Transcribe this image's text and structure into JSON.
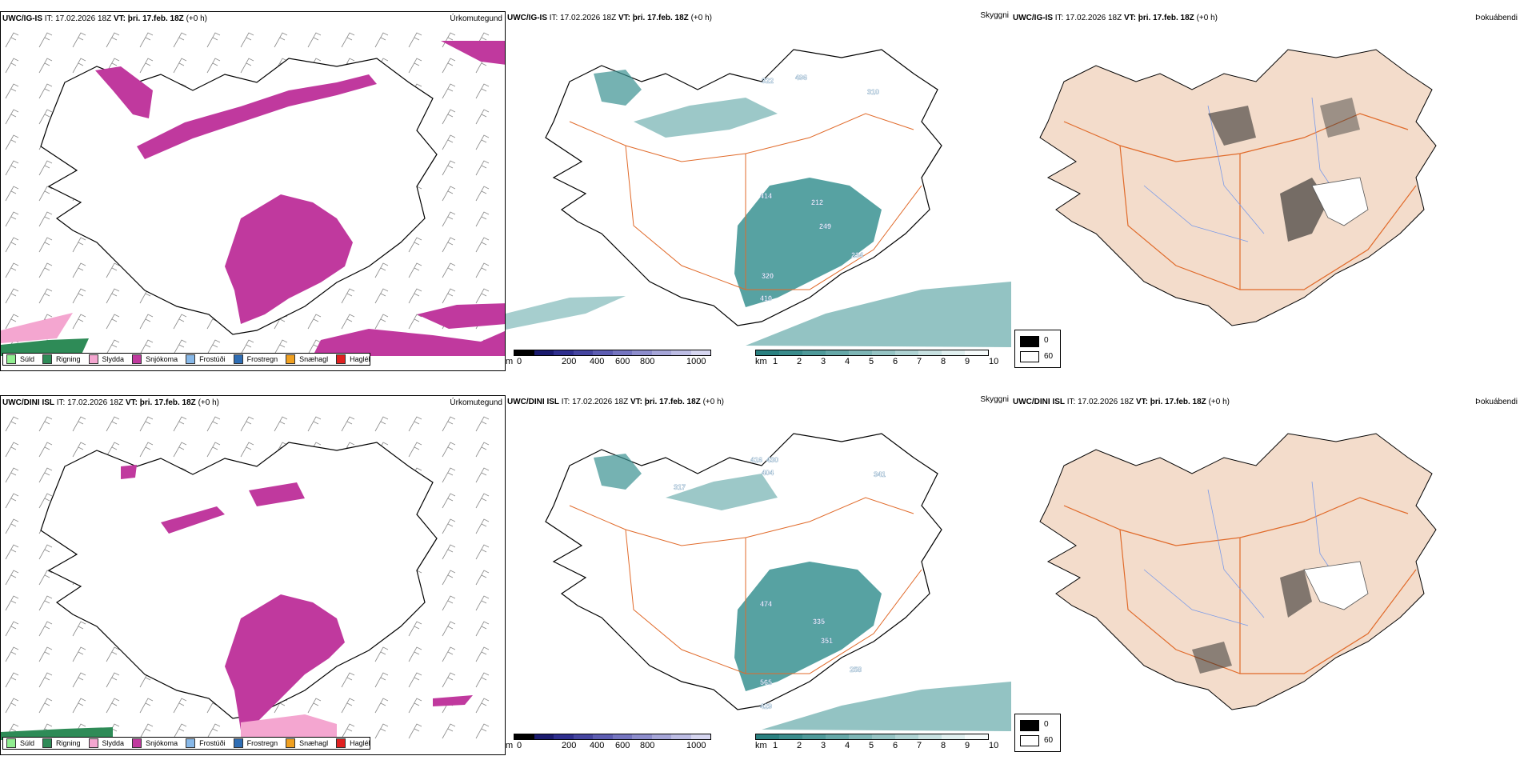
{
  "rows": [
    {
      "model": "UWC/IG-IS",
      "it_label": "IT:",
      "issue_time": "17.02.2026 18Z",
      "vt_label": "VT:",
      "valid_time": "þri. 17.feb. 18Z",
      "lead": "(+0 h)",
      "panel_titles": [
        "Úrkomutegund",
        "Skyggni",
        "Þokuábendi"
      ],
      "height_labels": [
        "322",
        "496",
        "310",
        "414",
        "212",
        "249",
        "234",
        "320",
        "410"
      ]
    },
    {
      "model": "UWC/DINI ISL",
      "it_label": "IT:",
      "issue_time": "17.02.2026 18Z",
      "vt_label": "VT:",
      "valid_time": "þri. 17.feb. 18Z",
      "lead": "(+0 h)",
      "panel_titles": [
        "Úrkomutegund",
        "Skyggni",
        "Þokuábendi"
      ],
      "height_labels": [
        "416",
        "430",
        "404",
        "317",
        "341",
        "474",
        "335",
        "351",
        "258",
        "565",
        "429"
      ]
    }
  ],
  "precip_legend": [
    {
      "label": "Súld",
      "color": "#90ee90"
    },
    {
      "label": "Rigning",
      "color": "#2e8b57"
    },
    {
      "label": "Slydda",
      "color": "#f4a6d0"
    },
    {
      "label": "Snjókoma",
      "color": "#c0399e"
    },
    {
      "label": "Frostúði",
      "color": "#87b8e8"
    },
    {
      "label": "Frostregn",
      "color": "#2e6db4"
    },
    {
      "label": "Snæhagl",
      "color": "#f0a020"
    },
    {
      "label": "Haglél",
      "color": "#e02020"
    }
  ],
  "colorbars": {
    "height_unit": "m",
    "height_ticks": [
      "0",
      "200",
      "400",
      "600",
      "800",
      "1000"
    ],
    "height_colors": [
      "#000000",
      "#1a1a6e",
      "#2e2e8e",
      "#4545a0",
      "#5d5db2",
      "#7575c0",
      "#8d8dcc",
      "#a6a6d8",
      "#bdbde4",
      "#d6d6f0"
    ],
    "vis_unit": "km",
    "vis_ticks": [
      "1",
      "2",
      "3",
      "4",
      "5",
      "6",
      "7",
      "8",
      "9",
      "10"
    ],
    "vis_colors": [
      "#2a8080",
      "#3a8c8c",
      "#4f9a9a",
      "#66a8a8",
      "#7eb6b6",
      "#96c4c4",
      "#afd3d3",
      "#c8e1e1",
      "#e1f0f0",
      "#f6fbfb"
    ]
  },
  "cloud_legend": {
    "black_label": "0",
    "white_label": "60"
  },
  "colors": {
    "snow": "#c0399e",
    "sleet": "#f4a6d0",
    "rain": "#2e8b57",
    "vis": "#3a9292",
    "land": "#f3dccb",
    "roads": "#e06a2a",
    "rivers": "#7a9ae8",
    "coast": "#000000"
  }
}
